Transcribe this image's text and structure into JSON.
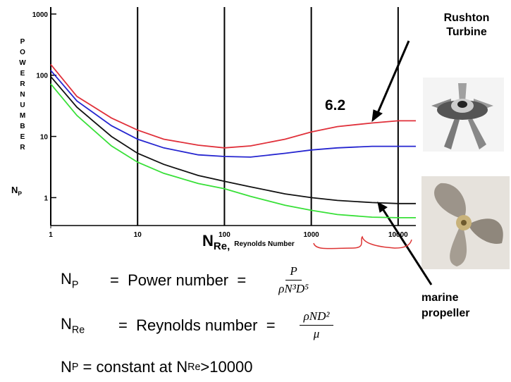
{
  "chart_data": {
    "type": "line",
    "log_x": true,
    "log_y": true,
    "x": [
      1,
      2,
      5,
      10,
      20,
      50,
      100,
      200,
      500,
      1000,
      2000,
      5000,
      10000,
      16000
    ],
    "series": [
      {
        "color": "#e0303a",
        "values": [
          150,
          45,
          20,
          12.7,
          9,
          7.2,
          6.5,
          7,
          9,
          11.8,
          14.5,
          16.6,
          18,
          18
        ]
      },
      {
        "color": "#2626d0",
        "values": [
          120,
          38,
          15,
          9,
          6.5,
          5,
          4.7,
          4.6,
          5.3,
          6,
          6.5,
          6.9,
          6.9,
          6.9
        ]
      },
      {
        "color": "#111111",
        "values": [
          95,
          30,
          10,
          5.3,
          3.5,
          2.3,
          1.85,
          1.5,
          1.15,
          1,
          0.9,
          0.83,
          0.8,
          0.8
        ]
      },
      {
        "color": "#38e038",
        "values": [
          72,
          22,
          7,
          3.8,
          2.5,
          1.7,
          1.4,
          1.05,
          0.75,
          0.62,
          0.53,
          0.48,
          0.47,
          0.47
        ]
      }
    ],
    "xlim": [
      1,
      16000
    ],
    "ylim": [
      0.35,
      1300
    ],
    "xticks": [
      1,
      10,
      100,
      1000,
      10000
    ],
    "yticks": [
      1,
      10,
      100,
      1000
    ],
    "vertical_grid": true,
    "y_label": "POWER NUMBER",
    "y_symbol": {
      "main": "N",
      "sub": "P"
    },
    "x_label": {
      "main": "N",
      "sub": "Re,",
      "note": "Reynolds Number"
    },
    "annotations": [
      "6.2",
      "Rushton Turbine",
      "marine propeller"
    ]
  },
  "definitions": [
    {
      "symbol": {
        "main": "N",
        "sub": "P"
      },
      "text": "=  Power number  =",
      "formula": {
        "numerator": "P",
        "denominator": "ρN³D⁵"
      }
    },
    {
      "symbol": {
        "main": "N",
        "sub": "Re"
      },
      "text": "=  Reynolds number  =",
      "formula": {
        "numerator": "ρND²",
        "denominator": "μ"
      }
    }
  ],
  "note": [
    "N",
    "P",
    " = constant at N",
    "Re",
    ">10000"
  ]
}
